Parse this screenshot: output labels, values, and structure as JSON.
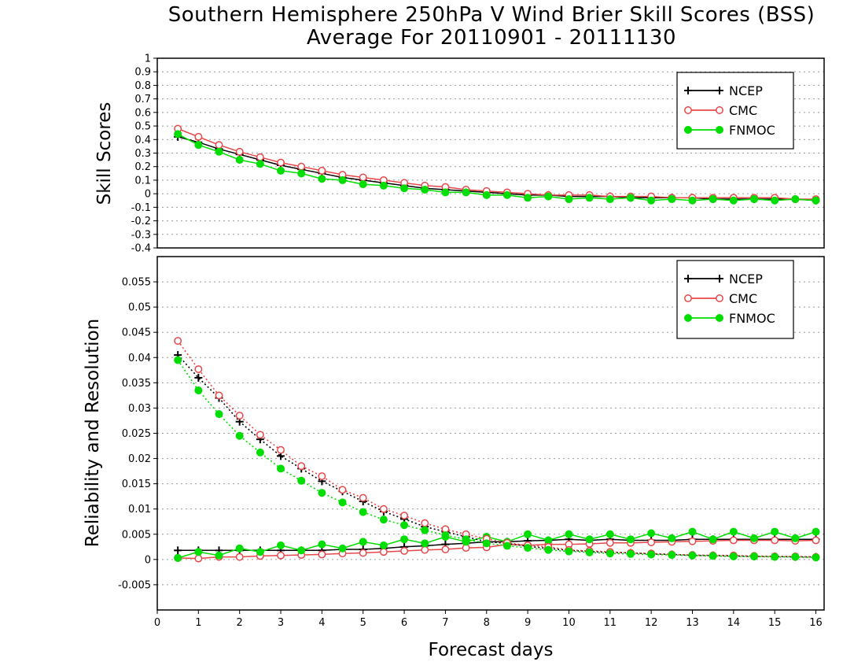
{
  "title": "Southern Hemisphere 250hPa V Wind Brier Skill Scores (BSS)",
  "subtitle": "Average For 20110901 - 20111130",
  "colors": {
    "NCEP": "#000000",
    "CMC": "#e8474a",
    "FNMOC": "#00dd00"
  },
  "chart_data": [
    {
      "type": "line",
      "ylabel": "Skill Scores",
      "xlabel": "",
      "xlim": [
        0,
        16.2
      ],
      "ylim": [
        -0.4,
        1
      ],
      "yticks": [
        -0.4,
        -0.3,
        -0.2,
        -0.1,
        0,
        0.1,
        0.2,
        0.3,
        0.4,
        0.5,
        0.6,
        0.7,
        0.8,
        0.9,
        1
      ],
      "ytick_labels": [
        "-0.4",
        "-0.3",
        "-0.2",
        "-0.1",
        "0",
        "0.1",
        "0.2",
        "0.3",
        "0.4",
        "0.5",
        "0.6",
        "0.7",
        "0.8",
        "0.9",
        "1"
      ],
      "grid": true,
      "legend": "top-right",
      "x": [
        0.5,
        1,
        1.5,
        2,
        2.5,
        3,
        3.5,
        4,
        4.5,
        5,
        5.5,
        6,
        6.5,
        7,
        7.5,
        8,
        8.5,
        9,
        9.5,
        10,
        10.5,
        11,
        11.5,
        12,
        12.5,
        13,
        13.5,
        14,
        14.5,
        15,
        15.5,
        16
      ],
      "series": [
        {
          "name": "NCEP",
          "values": [
            0.42,
            0.38,
            0.33,
            0.29,
            0.25,
            0.21,
            0.18,
            0.15,
            0.12,
            0.1,
            0.08,
            0.06,
            0.04,
            0.03,
            0.02,
            0.01,
            0.0,
            -0.01,
            -0.01,
            -0.02,
            -0.02,
            -0.02,
            -0.03,
            -0.03,
            -0.03,
            -0.03,
            -0.04,
            -0.04,
            -0.04,
            -0.04,
            -0.04,
            -0.05
          ]
        },
        {
          "name": "CMC",
          "values": [
            0.48,
            0.42,
            0.36,
            0.31,
            0.27,
            0.23,
            0.2,
            0.17,
            0.14,
            0.12,
            0.1,
            0.08,
            0.06,
            0.05,
            0.03,
            0.02,
            0.01,
            0.0,
            -0.01,
            -0.01,
            -0.01,
            -0.02,
            -0.02,
            -0.02,
            -0.03,
            -0.03,
            -0.03,
            -0.03,
            -0.03,
            -0.03,
            -0.04,
            -0.04
          ]
        },
        {
          "name": "FNMOC",
          "values": [
            0.44,
            0.36,
            0.31,
            0.25,
            0.22,
            0.17,
            0.15,
            0.11,
            0.1,
            0.07,
            0.06,
            0.04,
            0.03,
            0.01,
            0.01,
            -0.01,
            -0.01,
            -0.03,
            -0.02,
            -0.04,
            -0.03,
            -0.04,
            -0.03,
            -0.05,
            -0.04,
            -0.05,
            -0.04,
            -0.05,
            -0.04,
            -0.05,
            -0.04,
            -0.05
          ]
        }
      ]
    },
    {
      "type": "line",
      "ylabel": "Reliability and Resolution",
      "xlabel": "Forecast days",
      "xlim": [
        0,
        16.2
      ],
      "ylim": [
        -0.01,
        0.06
      ],
      "yticks": [
        -0.005,
        0,
        0.005,
        0.01,
        0.015,
        0.02,
        0.025,
        0.03,
        0.035,
        0.04,
        0.045,
        0.05,
        0.055
      ],
      "ytick_labels": [
        "-0.005",
        "0",
        "0.005",
        "0.01",
        "0.015",
        "0.02",
        "0.025",
        "0.03",
        "0.035",
        "0.04",
        "0.045",
        "0.05",
        "0.055"
      ],
      "xticks": [
        0,
        1,
        2,
        3,
        4,
        5,
        6,
        7,
        8,
        9,
        10,
        11,
        12,
        13,
        14,
        15,
        16
      ],
      "xtick_labels": [
        "0",
        "1",
        "2",
        "3",
        "4",
        "5",
        "6",
        "7",
        "8",
        "9",
        "10",
        "11",
        "12",
        "13",
        "14",
        "15",
        "16"
      ],
      "grid": true,
      "legend": "top-right",
      "x": [
        0.5,
        1,
        1.5,
        2,
        2.5,
        3,
        3.5,
        4,
        4.5,
        5,
        5.5,
        6,
        6.5,
        7,
        7.5,
        8,
        8.5,
        9,
        9.5,
        10,
        10.5,
        11,
        11.5,
        12,
        12.5,
        13,
        13.5,
        14,
        14.5,
        15,
        15.5,
        16
      ],
      "series": [
        {
          "name": "NCEP",
          "style": "solid",
          "values": [
            0.0018,
            0.0018,
            0.0018,
            0.0018,
            0.0018,
            0.0018,
            0.0018,
            0.0018,
            0.002,
            0.002,
            0.0022,
            0.0025,
            0.0027,
            0.003,
            0.0032,
            0.0035,
            0.0035,
            0.0037,
            0.0038,
            0.004,
            0.0038,
            0.004,
            0.0038,
            0.0038,
            0.0038,
            0.004,
            0.004,
            0.004,
            0.004,
            0.004,
            0.004,
            0.004
          ]
        },
        {
          "name": "CMC",
          "style": "solid",
          "values": [
            0.0003,
            0.0002,
            0.0005,
            0.0005,
            0.0007,
            0.0008,
            0.0009,
            0.001,
            0.0012,
            0.0013,
            0.0015,
            0.0017,
            0.0019,
            0.002,
            0.0023,
            0.0024,
            0.003,
            0.0028,
            0.003,
            0.003,
            0.0031,
            0.0033,
            0.0033,
            0.0034,
            0.0035,
            0.0036,
            0.0037,
            0.0038,
            0.0038,
            0.0038,
            0.0037,
            0.0038
          ]
        },
        {
          "name": "FNMOC",
          "style": "solid",
          "values": [
            0.0003,
            0.0015,
            0.0008,
            0.0022,
            0.0015,
            0.0028,
            0.0018,
            0.003,
            0.0022,
            0.0035,
            0.0028,
            0.004,
            0.0032,
            0.0045,
            0.0035,
            0.0045,
            0.0035,
            0.005,
            0.0038,
            0.005,
            0.004,
            0.005,
            0.004,
            0.0052,
            0.0042,
            0.0055,
            0.004,
            0.0055,
            0.0042,
            0.0055,
            0.0042,
            0.0055
          ]
        },
        {
          "name": "NCEP",
          "style": "dotted",
          "values": [
            0.0405,
            0.036,
            0.032,
            0.0273,
            0.0238,
            0.0205,
            0.018,
            0.0155,
            0.0135,
            0.0115,
            0.0095,
            0.008,
            0.0065,
            0.0055,
            0.0045,
            0.0035,
            0.0032,
            0.0026,
            0.0022,
            0.0018,
            0.0016,
            0.0014,
            0.0013,
            0.0011,
            0.001,
            0.0008,
            0.0008,
            0.0007,
            0.0006,
            0.0006,
            0.0005,
            0.0005
          ]
        },
        {
          "name": "CMC",
          "style": "dotted",
          "values": [
            0.0433,
            0.0377,
            0.0325,
            0.0285,
            0.0247,
            0.0217,
            0.0185,
            0.0165,
            0.0138,
            0.0122,
            0.01,
            0.0087,
            0.0072,
            0.006,
            0.005,
            0.0041,
            0.0033,
            0.0028,
            0.0025,
            0.0019,
            0.0017,
            0.0015,
            0.0013,
            0.0012,
            0.001,
            0.0009,
            0.0008,
            0.0008,
            0.0007,
            0.0006,
            0.0006,
            0.0005
          ]
        },
        {
          "name": "FNMOC",
          "style": "dotted",
          "values": [
            0.0395,
            0.0335,
            0.0288,
            0.0245,
            0.0212,
            0.018,
            0.0156,
            0.0132,
            0.0113,
            0.0094,
            0.0079,
            0.0068,
            0.0058,
            0.0048,
            0.004,
            0.0032,
            0.0027,
            0.0023,
            0.0019,
            0.0016,
            0.0014,
            0.0012,
            0.0011,
            0.001,
            0.0009,
            0.0008,
            0.0007,
            0.0006,
            0.0006,
            0.0005,
            0.0005,
            0.0004
          ]
        }
      ]
    }
  ]
}
